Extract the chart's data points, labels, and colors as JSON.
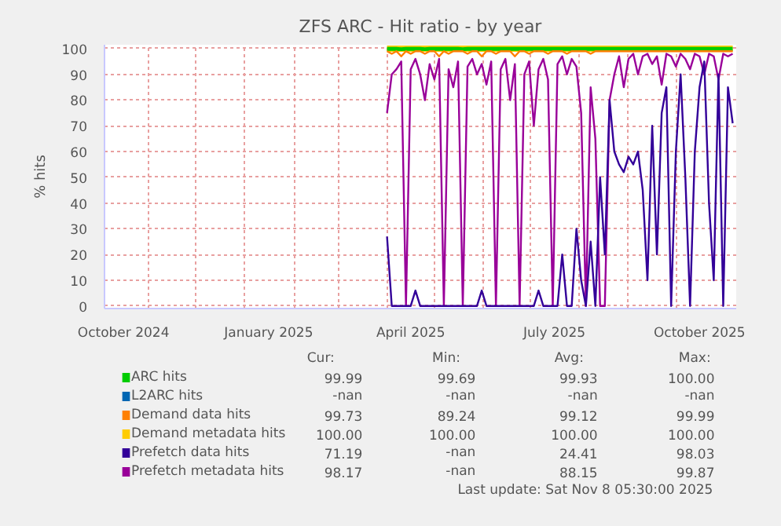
{
  "chart_data": {
    "type": "line",
    "title": "ZFS ARC - Hit ratio - by year",
    "ylabel": "% hits",
    "x": [
      "2025-04-01",
      "2025-04-04",
      "2025-04-07",
      "2025-04-10",
      "2025-04-13",
      "2025-04-16",
      "2025-04-19",
      "2025-04-22",
      "2025-04-25",
      "2025-04-28",
      "2025-05-01",
      "2025-05-04",
      "2025-05-07",
      "2025-05-10",
      "2025-05-13",
      "2025-05-16",
      "2025-05-19",
      "2025-05-22",
      "2025-05-25",
      "2025-05-28",
      "2025-05-31",
      "2025-06-03",
      "2025-06-06",
      "2025-06-09",
      "2025-06-12",
      "2025-06-15",
      "2025-06-18",
      "2025-06-21",
      "2025-06-24",
      "2025-06-27",
      "2025-06-30",
      "2025-07-03",
      "2025-07-06",
      "2025-07-09",
      "2025-07-12",
      "2025-07-15",
      "2025-07-18",
      "2025-07-21",
      "2025-07-24",
      "2025-07-27",
      "2025-07-30",
      "2025-08-02",
      "2025-08-05",
      "2025-08-08",
      "2025-08-11",
      "2025-08-14",
      "2025-08-17",
      "2025-08-20",
      "2025-08-23",
      "2025-08-26",
      "2025-08-29",
      "2025-09-01",
      "2025-09-04",
      "2025-09-07",
      "2025-09-10",
      "2025-09-13",
      "2025-09-16",
      "2025-09-19",
      "2025-09-22",
      "2025-09-25",
      "2025-09-28",
      "2025-10-01",
      "2025-10-04",
      "2025-10-07",
      "2025-10-10",
      "2025-10-13",
      "2025-10-16",
      "2025-10-19",
      "2025-10-22",
      "2025-10-25",
      "2025-10-28",
      "2025-10-31",
      "2025-11-03",
      "2025-11-06"
    ],
    "series": [
      {
        "name": "ARC hits",
        "color": "#00cc00",
        "values": [
          99.9,
          99.9,
          99.9,
          99.8,
          99.9,
          99.9,
          99.9,
          99.9,
          99.8,
          99.9,
          99.9,
          99.9,
          99.9,
          99.9,
          99.9,
          99.9,
          99.8,
          99.9,
          99.9,
          99.9,
          99.9,
          99.9,
          99.9,
          99.9,
          99.9,
          99.9,
          99.9,
          99.9,
          99.9,
          99.9,
          99.9,
          99.9,
          99.9,
          99.9,
          99.9,
          99.9,
          99.9,
          99.9,
          99.9,
          99.9,
          99.9,
          99.9,
          99.9,
          99.9,
          99.9,
          99.9,
          99.9,
          99.9,
          99.9,
          99.9,
          99.9,
          99.9,
          99.9,
          99.9,
          99.9,
          99.9,
          99.9,
          99.9,
          99.9,
          99.9,
          99.9,
          99.9,
          99.9,
          99.9,
          99.9,
          99.9,
          99.9,
          99.9,
          99.9,
          99.9,
          99.9,
          99.9,
          99.9,
          99.9
        ]
      },
      {
        "name": "L2ARC hits",
        "color": "#0066b3",
        "values": [
          null,
          null,
          null,
          null,
          null,
          null,
          null,
          null,
          null,
          null,
          null,
          null,
          null,
          null,
          null,
          null,
          null,
          null,
          null,
          null,
          null,
          null,
          null,
          null,
          null,
          null,
          null,
          null,
          null,
          null,
          null,
          null,
          null,
          null,
          null,
          null,
          null,
          null,
          null,
          null,
          null,
          null,
          null,
          null,
          null,
          null,
          null,
          null,
          null,
          null,
          null,
          null,
          null,
          null,
          null,
          null,
          null,
          null,
          null,
          null,
          null,
          null,
          null,
          null,
          null,
          null,
          null,
          null,
          null,
          null,
          null,
          null,
          null,
          null
        ]
      },
      {
        "name": "Demand data hits",
        "color": "#ff8000",
        "values": [
          99,
          98,
          99,
          97,
          99,
          98,
          99,
          99,
          98,
          99,
          99,
          97,
          99,
          98,
          99,
          99,
          99,
          98,
          99,
          99,
          97,
          99,
          99,
          98,
          99,
          99,
          99,
          97,
          99,
          99,
          98,
          99,
          99,
          99,
          98,
          99,
          99,
          99,
          98,
          99,
          99,
          99,
          99,
          98,
          99,
          99,
          99,
          99,
          99,
          99,
          99,
          99,
          99,
          99,
          99,
          99,
          99,
          99,
          99,
          99,
          99,
          99,
          99,
          99,
          99,
          99,
          99,
          99,
          99,
          99,
          99,
          99,
          99,
          99
        ]
      },
      {
        "name": "Demand metadata hits",
        "color": "#ffcc00",
        "values": [
          100,
          100,
          100,
          100,
          100,
          100,
          100,
          100,
          100,
          100,
          100,
          100,
          100,
          100,
          100,
          100,
          100,
          100,
          100,
          100,
          100,
          100,
          100,
          100,
          100,
          100,
          100,
          100,
          100,
          100,
          100,
          100,
          100,
          100,
          100,
          100,
          100,
          100,
          100,
          100,
          100,
          100,
          100,
          100,
          100,
          100,
          100,
          100,
          100,
          100,
          100,
          100,
          100,
          100,
          100,
          100,
          100,
          100,
          100,
          100,
          100,
          100,
          100,
          100,
          100,
          100,
          100,
          100,
          100,
          100,
          100,
          100,
          100,
          100
        ]
      },
      {
        "name": "Prefetch data hits",
        "color": "#330099",
        "values": [
          27,
          0,
          0,
          0,
          0,
          0,
          6,
          0,
          0,
          0,
          0,
          0,
          0,
          0,
          0,
          0,
          0,
          0,
          0,
          0,
          6,
          0,
          0,
          0,
          0,
          0,
          0,
          0,
          0,
          0,
          0,
          0,
          6,
          0,
          0,
          0,
          0,
          20,
          0,
          0,
          30,
          10,
          0,
          25,
          0,
          50,
          20,
          80,
          60,
          55,
          52,
          58,
          55,
          60,
          45,
          10,
          70,
          20,
          75,
          85,
          0,
          60,
          90,
          50,
          0,
          60,
          85,
          95,
          40,
          10,
          90,
          0,
          85,
          71
        ]
      },
      {
        "name": "Prefetch metadata hits",
        "color": "#990099",
        "values": [
          75,
          90,
          92,
          95,
          0,
          92,
          96,
          90,
          80,
          94,
          88,
          96,
          0,
          92,
          85,
          95,
          0,
          93,
          96,
          90,
          94,
          86,
          95,
          0,
          92,
          96,
          80,
          94,
          0,
          90,
          95,
          70,
          92,
          96,
          88,
          0,
          94,
          97,
          90,
          96,
          93,
          75,
          0,
          85,
          65,
          0,
          0,
          80,
          90,
          97,
          85,
          96,
          98,
          90,
          97,
          98,
          94,
          97,
          86,
          98,
          97,
          93,
          98,
          96,
          92,
          98,
          97,
          90,
          98,
          97,
          88,
          98,
          97,
          98
        ]
      }
    ],
    "xlim": [
      "2024-10-04",
      "2025-11-08T05:30"
    ],
    "xticks": [
      {
        "value": "2024-10-16",
        "label": "October 2024"
      },
      {
        "value": "2025-01-16",
        "label": "January 2025"
      },
      {
        "value": "2025-04-16",
        "label": "April 2025"
      },
      {
        "value": "2025-07-16",
        "label": "July 2025"
      },
      {
        "value": "2025-10-16",
        "label": "October 2025"
      },
      {
        "value": "2024-11-01",
        "label": null
      },
      {
        "value": "2024-12-01",
        "label": null
      },
      {
        "value": "2025-01-01",
        "label": null
      },
      {
        "value": "2025-02-01",
        "label": null
      },
      {
        "value": "2025-03-01",
        "label": null
      },
      {
        "value": "2025-04-01",
        "label": null
      },
      {
        "value": "2025-05-01",
        "label": null
      },
      {
        "value": "2025-06-01",
        "label": null
      },
      {
        "value": "2025-07-01",
        "label": null
      },
      {
        "value": "2025-08-01",
        "label": null
      },
      {
        "value": "2025-09-01",
        "label": null
      },
      {
        "value": "2025-10-01",
        "label": null
      }
    ],
    "ylim": [
      -1,
      101.5
    ],
    "yticks": [
      0,
      10,
      20,
      30,
      40,
      50,
      60,
      70,
      80,
      90,
      100
    ],
    "grid": true,
    "legend": "bottom",
    "line_style": "solid",
    "annotations": [
      "Cur:",
      "Min:",
      "Avg:",
      "Max:",
      "99.99",
      "99.69",
      "99.93",
      "100.00",
      "-nan",
      "-nan",
      "-nan",
      "-nan",
      "99.73",
      "89.24",
      "99.12",
      "99.99",
      "100.00",
      "100.00",
      "100.00",
      "100.00",
      "71.19",
      "-nan",
      "24.41",
      "98.03",
      "98.17",
      "-nan",
      "88.15",
      "99.87",
      "Last update: Sat Nov  8 05:30:00 2025"
    ]
  }
}
